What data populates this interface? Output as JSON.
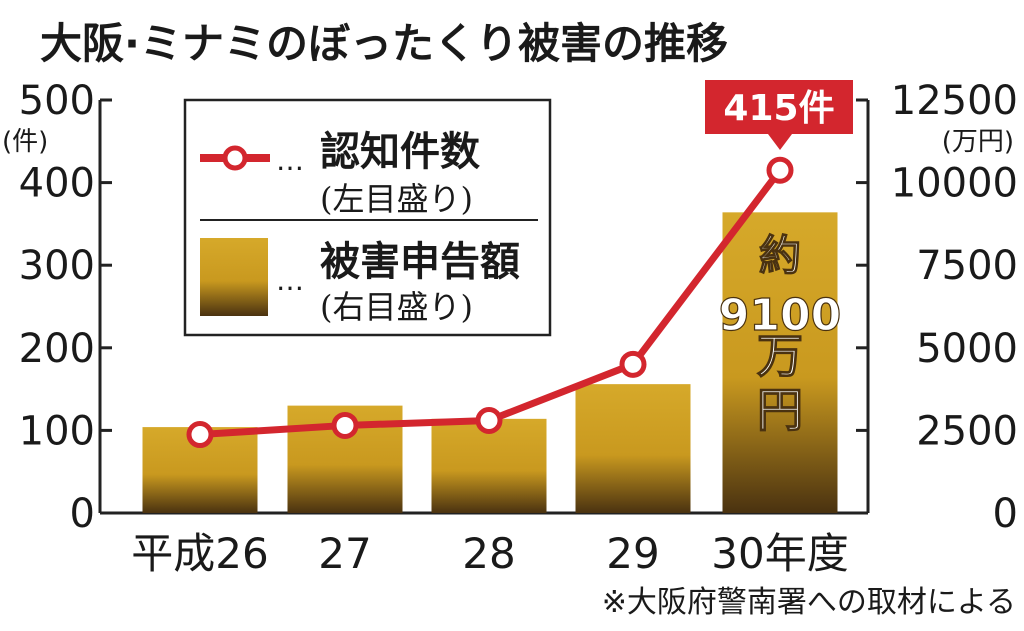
{
  "chart_data": {
    "type": "bar+line",
    "title": "大阪·ミナミのぼったくり被害の推移",
    "categories": [
      "平成26",
      "27",
      "28",
      "29",
      "30年度"
    ],
    "y_left": {
      "unit": "(件)",
      "range": [
        0,
        500
      ],
      "ticks": [
        "0",
        "100",
        "200",
        "300",
        "400",
        "500"
      ]
    },
    "y_right": {
      "unit": "(万円)",
      "range": [
        0,
        12500
      ],
      "ticks": [
        "0",
        "2500",
        "5000",
        "7500",
        "10000",
        "12500"
      ]
    },
    "series": [
      {
        "name": "認知件数",
        "axis_note": "(左目盛り)",
        "kind": "line",
        "color": "#d3262e",
        "values": [
          95,
          106,
          112,
          180,
          415
        ]
      },
      {
        "name": "被害申告額",
        "axis_note": "(右目盛り)",
        "kind": "bar",
        "color": "#d4a62a",
        "values": [
          2600,
          3250,
          2850,
          3900,
          9100
        ]
      }
    ],
    "annotations": {
      "last_count": "415件",
      "last_amount_lines": [
        "約",
        "9100",
        "万",
        "円"
      ]
    },
    "legend": {
      "placement": "top-left",
      "dots": "…"
    },
    "source_note": "※大阪府警南署への取材による",
    "grid": false
  }
}
